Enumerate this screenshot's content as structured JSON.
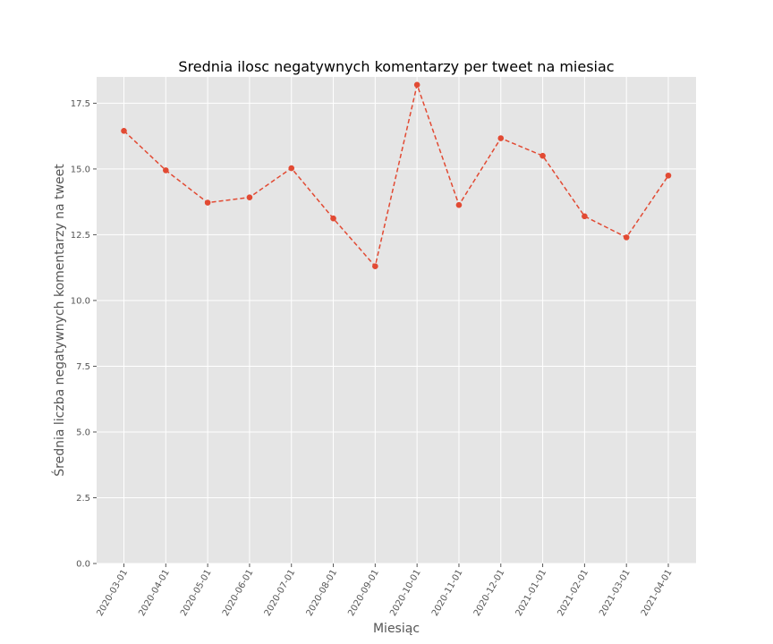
{
  "chart_data": {
    "type": "line",
    "title": "Srednia ilosc negatywnych komentarzy per tweet na miesiac",
    "xlabel": "Miesiąc",
    "ylabel": "Średnia liczba negatywnych komentarzy na tweet",
    "categories": [
      "2020-03-01",
      "2020-04-01",
      "2020-05-01",
      "2020-06-01",
      "2020-07-01",
      "2020-08-01",
      "2020-09-01",
      "2020-10-01",
      "2020-11-01",
      "2020-12-01",
      "2021-01-01",
      "2021-02-01",
      "2021-03-01",
      "2021-04-01"
    ],
    "values": [
      16.45,
      14.95,
      13.72,
      13.92,
      15.03,
      13.12,
      11.3,
      18.2,
      13.63,
      16.17,
      15.5,
      13.2,
      12.4,
      14.75
    ],
    "ylim": [
      0,
      18.5
    ],
    "yticks": [
      "0.0",
      "2.5",
      "5.0",
      "7.5",
      "10.0",
      "12.5",
      "15.0",
      "17.5"
    ],
    "grid": true,
    "colors": {
      "line": "#E24A33",
      "background": "#E5E5E5",
      "grid": "#FFFFFF"
    }
  }
}
